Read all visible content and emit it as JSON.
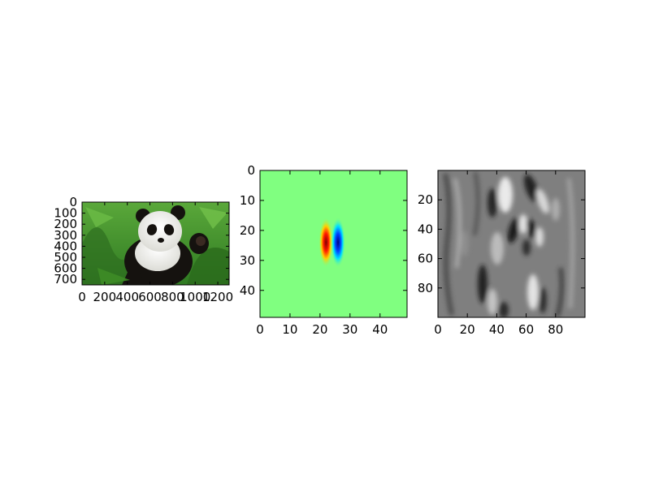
{
  "chart_data": [
    {
      "type": "image",
      "subject": "panda photo",
      "xlim": [
        0,
        1300
      ],
      "ylim": [
        750,
        0
      ],
      "xticks": [
        "0",
        "200",
        "400",
        "600",
        "800",
        "1000",
        "1200"
      ],
      "yticks": [
        "0",
        "100",
        "200",
        "300",
        "400",
        "500",
        "600",
        "700"
      ],
      "xtick_values": [
        0,
        200,
        400,
        600,
        800,
        1000,
        1200
      ],
      "ytick_values": [
        0,
        100,
        200,
        300,
        400,
        500,
        600,
        700
      ]
    },
    {
      "type": "heatmap",
      "subject": "gabor filter kernel",
      "colormap": "jet",
      "xlim": [
        0,
        49
      ],
      "ylim": [
        49,
        0
      ],
      "xticks": [
        "0",
        "10",
        "20",
        "30",
        "40"
      ],
      "yticks": [
        "0",
        "10",
        "20",
        "30",
        "40"
      ],
      "xtick_values": [
        0,
        10,
        20,
        30,
        40
      ],
      "ytick_values": [
        0,
        10,
        20,
        30,
        40
      ],
      "center": [
        24,
        24
      ],
      "lobes": [
        {
          "x": 22,
          "y": 24,
          "value": 1,
          "color": "red"
        },
        {
          "x": 26,
          "y": 24,
          "value": -1,
          "color": "blue"
        }
      ]
    },
    {
      "type": "heatmap",
      "subject": "filtered image response",
      "colormap": "gray",
      "xlim": [
        0,
        100
      ],
      "ylim": [
        100,
        0
      ],
      "xticks": [
        "0",
        "20",
        "40",
        "60",
        "80"
      ],
      "yticks": [
        "20",
        "40",
        "60",
        "80"
      ],
      "xtick_values": [
        0,
        20,
        40,
        60,
        80
      ],
      "ytick_values": [
        20,
        40,
        60,
        80
      ]
    }
  ],
  "colors": {
    "jet_background": "#80ff80",
    "gray_background": "#7f7f7f",
    "grass": "#3f8f2a",
    "panda_white": "#f2f2ee",
    "panda_black": "#15120f"
  }
}
